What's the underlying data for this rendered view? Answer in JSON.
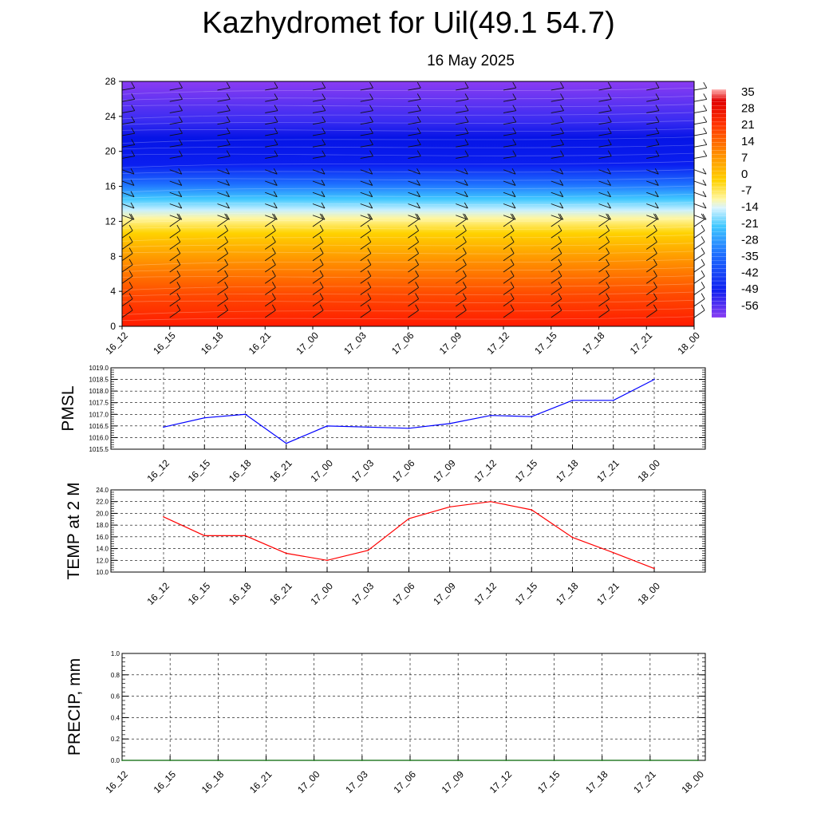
{
  "title": "Kazhydromet for Uil(49.1 54.7)",
  "subtitle": "16 May 2025",
  "time_labels": [
    "16_12",
    "16_15",
    "16_18",
    "16_21",
    "17_00",
    "17_03",
    "17_06",
    "17_09",
    "17_12",
    "17_15",
    "17_18",
    "17_21",
    "18_00"
  ],
  "colors": {
    "pmsl_line": "#0000ff",
    "temp_line": "#ff0000",
    "precip_line": "#006400",
    "grid": "#000000"
  },
  "chart_data": [
    {
      "id": "profile",
      "type": "heatmap",
      "title": "",
      "xlabel": "",
      "ylabel": "",
      "categories": [
        "16_12",
        "16_15",
        "16_18",
        "16_21",
        "17_00",
        "17_03",
        "17_06",
        "17_09",
        "17_12",
        "17_15",
        "17_18",
        "17_21",
        "18_00"
      ],
      "ylim": [
        0,
        28
      ],
      "yticks": [
        0,
        4,
        8,
        12,
        16,
        20,
        24,
        28
      ],
      "colorbar_ticks": [
        35,
        28,
        21,
        14,
        7,
        0,
        -7,
        -14,
        -21,
        -28,
        -35,
        -42,
        -49,
        -56
      ],
      "overlay": "wind barbs",
      "approx_temperature_profile": [
        {
          "level": 0,
          "value": 28
        },
        {
          "level": 4,
          "value": 20
        },
        {
          "level": 8,
          "value": 12
        },
        {
          "level": 11,
          "value": 2
        },
        {
          "level": 12.5,
          "value": -8
        },
        {
          "level": 14,
          "value": -20
        },
        {
          "level": 16,
          "value": -35
        },
        {
          "level": 18,
          "value": -48
        },
        {
          "level": 20,
          "value": -56
        },
        {
          "level": 24,
          "value": -56
        },
        {
          "level": 28,
          "value": -56
        }
      ]
    },
    {
      "id": "pmsl",
      "type": "line",
      "ylabel": "PMSL",
      "categories": [
        "16_12",
        "16_15",
        "16_18",
        "16_21",
        "17_00",
        "17_03",
        "17_06",
        "17_09",
        "17_12",
        "17_15",
        "17_18",
        "17_21",
        "18_00"
      ],
      "yticks": [
        "1015.5",
        "1016.0",
        "1016.5",
        "1017.0",
        "1017.5",
        "1018.0",
        "1018.5",
        "1019.0"
      ],
      "ylim": [
        1015.5,
        1019.0
      ],
      "grid": true,
      "series": [
        {
          "values": [
            1016.45,
            1016.85,
            1017.0,
            1015.75,
            1016.5,
            1016.45,
            1016.4,
            1016.6,
            1016.95,
            1016.9,
            1017.6,
            1017.6,
            1018.5
          ]
        }
      ]
    },
    {
      "id": "temp",
      "type": "line",
      "ylabel": "TEMP at 2 M",
      "categories": [
        "16_12",
        "16_15",
        "16_18",
        "16_21",
        "17_00",
        "17_03",
        "17_06",
        "17_09",
        "17_12",
        "17_15",
        "17_18",
        "17_21",
        "18_00"
      ],
      "yticks": [
        "10.0",
        "12.0",
        "14.0",
        "16.0",
        "18.0",
        "20.0",
        "22.0",
        "24.0"
      ],
      "ylim": [
        10,
        24
      ],
      "grid": true,
      "series": [
        {
          "values": [
            19.4,
            16.2,
            16.2,
            13.2,
            12.0,
            13.7,
            19.1,
            21.1,
            22.0,
            20.6,
            15.9,
            13.3,
            10.6
          ]
        }
      ]
    },
    {
      "id": "precip",
      "type": "line",
      "ylabel": "PRECIP, mm",
      "categories": [
        "16_12",
        "16_15",
        "16_18",
        "16_21",
        "17_00",
        "17_03",
        "17_06",
        "17_09",
        "17_12",
        "17_15",
        "17_18",
        "17_21",
        "18_00"
      ],
      "yticks": [
        "0.0",
        "0.2",
        "0.4",
        "0.6",
        "0.8",
        "1.0"
      ],
      "ylim": [
        0,
        1
      ],
      "grid": true,
      "series": [
        {
          "values": [
            0,
            0,
            0,
            0,
            0,
            0,
            0,
            0,
            0,
            0,
            0,
            0,
            0
          ]
        }
      ]
    }
  ]
}
